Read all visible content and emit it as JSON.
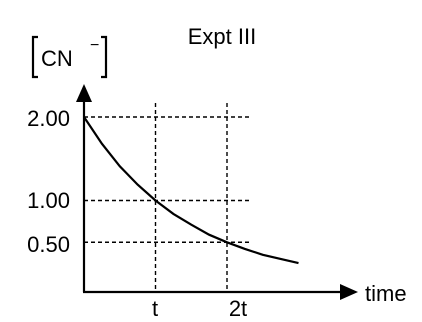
{
  "chart_data": {
    "type": "line",
    "title": "Expt III",
    "ylabel": "CN",
    "ylabel_charge": "−",
    "xlabel": "time",
    "x_ticks": [
      "t",
      "2t"
    ],
    "y_ticks": [
      "2.00",
      "1.00",
      "0.50"
    ],
    "y_tick_values": [
      2.0,
      1.0,
      0.5
    ],
    "x_tick_values": [
      1,
      2
    ],
    "grid": "dashed",
    "axis_arrows": true,
    "series": [
      {
        "x": [
          0,
          0.25,
          0.5,
          0.75,
          1,
          1.25,
          1.5,
          1.75,
          2,
          2.25,
          2.5,
          2.75,
          3
        ],
        "y": [
          2.0,
          1.68,
          1.41,
          1.19,
          1.0,
          0.84,
          0.71,
          0.59,
          0.5,
          0.42,
          0.35,
          0.3,
          0.25
        ]
      }
    ]
  }
}
